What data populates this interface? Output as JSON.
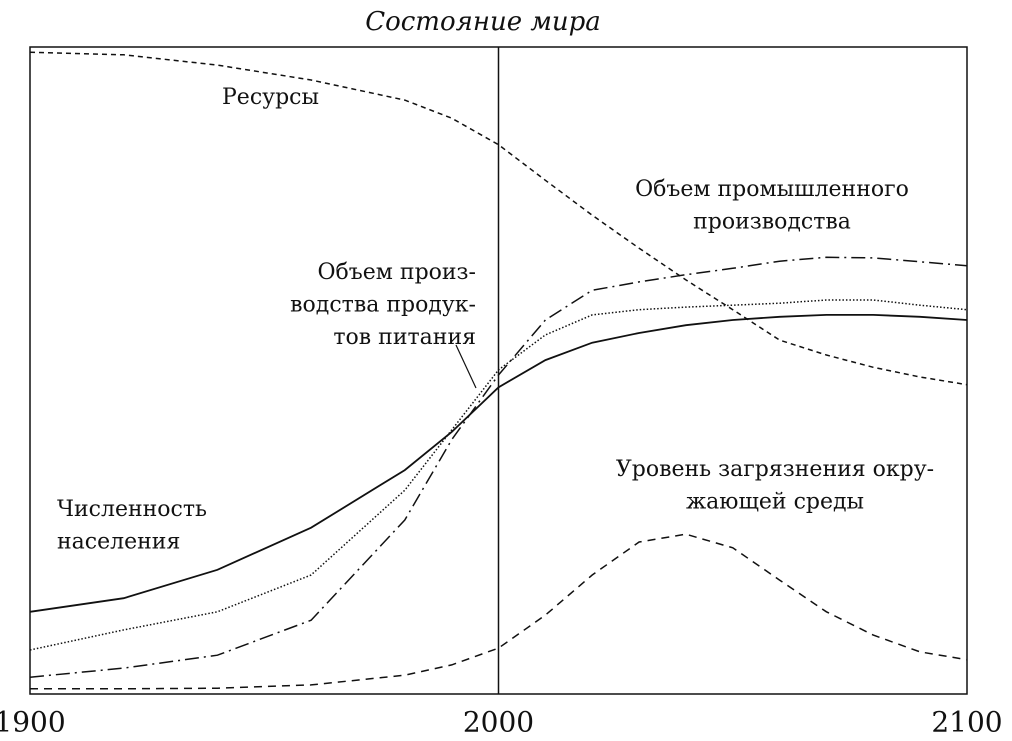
{
  "chart_data": {
    "type": "line",
    "title": "Состояние мира",
    "x": [
      1900,
      1920,
      1940,
      1960,
      1980,
      1990,
      2000,
      2010,
      2020,
      2030,
      2040,
      2050,
      2060,
      2070,
      2080,
      2090,
      2100
    ],
    "xlim": [
      1900,
      2100
    ],
    "xticks": [
      1900,
      2000,
      2100
    ],
    "ylim": [
      0,
      100
    ],
    "series": [
      {
        "name": [
          "Ресурсы"
        ],
        "color": "#111111",
        "dash": "dashed-fine",
        "values": [
          99.2,
          98.8,
          97.2,
          94.9,
          91.8,
          89,
          84.9,
          79.4,
          74,
          68.9,
          64,
          59.4,
          54.7,
          52.4,
          50.5,
          49,
          47.8
        ]
      },
      {
        "name": [
          "Объем промышленного",
          "производства"
        ],
        "color": "#111111",
        "dash": "dash-dot",
        "values": [
          2.6,
          4,
          6,
          11.4,
          26.9,
          39.3,
          49.3,
          57.8,
          62.4,
          63.7,
          64.8,
          65.8,
          66.9,
          67.5,
          67.4,
          66.8,
          66.2
        ]
      },
      {
        "name": [
          "Объем произ-",
          "водства продук-",
          "тов питания"
        ],
        "color": "#111111",
        "dash": "dotted",
        "values": [
          6.8,
          9.9,
          12.7,
          18.4,
          31.5,
          40.8,
          50.1,
          55.5,
          58.6,
          59.4,
          59.8,
          60.1,
          60.4,
          60.9,
          60.9,
          60.1,
          59.4
        ]
      },
      {
        "name": [
          "Численность",
          "населения"
        ],
        "color": "#111111",
        "dash": "solid",
        "values": [
          12.7,
          14.8,
          19.2,
          25.7,
          34.6,
          40.5,
          47.4,
          51.6,
          54.3,
          55.8,
          57,
          57.8,
          58.3,
          58.6,
          58.6,
          58.3,
          57.8
        ]
      },
      {
        "name": [
          "Уровень загрязнения окру-",
          "жающей среды"
        ],
        "color": "#111111",
        "dash": "dashed",
        "values": [
          0.8,
          0.8,
          0.9,
          1.4,
          2.9,
          4.5,
          7.1,
          12.2,
          18.4,
          23.5,
          24.7,
          22.6,
          17.6,
          12.7,
          9.1,
          6.5,
          5.3
        ]
      }
    ]
  }
}
